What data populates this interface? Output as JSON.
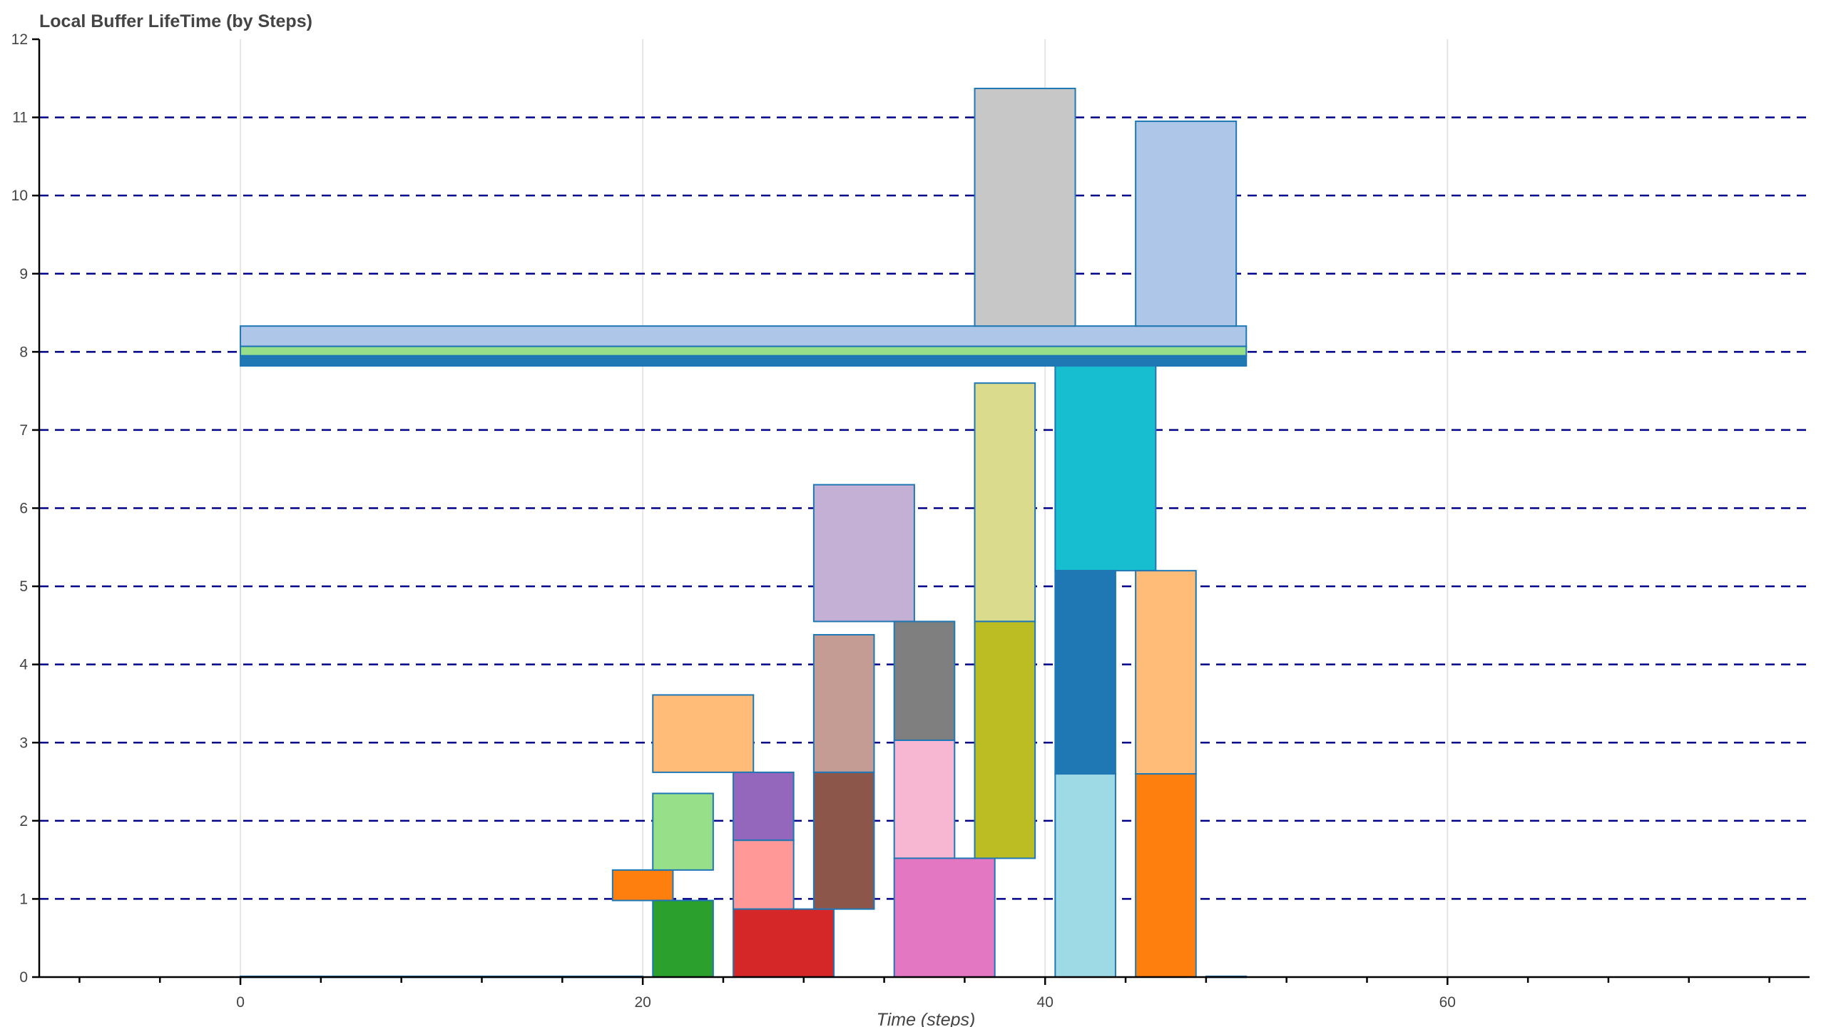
{
  "chart_data": {
    "type": "bar",
    "subtype": "rectangles",
    "title": "Local Buffer LifeTime (by Steps)",
    "xlabel": "Time (steps)",
    "ylabel": "",
    "xlim": [
      -10,
      78
    ],
    "ylim": [
      0,
      12
    ],
    "xticks": [
      0,
      20,
      40,
      60
    ],
    "xtick_labels": [
      "0",
      "20",
      "40",
      "60"
    ],
    "yticks": [
      0,
      1,
      2,
      3,
      4,
      5,
      6,
      7,
      8,
      9,
      10,
      11,
      12
    ],
    "ytick_labels": [
      "0",
      "1",
      "2",
      "3",
      "4",
      "5",
      "6",
      "7",
      "8",
      "9",
      "10",
      "11",
      "12"
    ],
    "grid": "horizontal dashed lines; light vertical lines at major x ticks",
    "grid_color": "#00008b",
    "edge_color": "#1f77b4",
    "rects": [
      {
        "x0": 0,
        "x1": 20,
        "y0": 0,
        "y1": 0.01,
        "color": "#1f77b4"
      },
      {
        "x0": 48,
        "x1": 50,
        "y0": 0,
        "y1": 0.01,
        "color": "#1f77b4"
      },
      {
        "x0": 0,
        "x1": 50,
        "y0": 8.07,
        "y1": 8.33,
        "color": "#aec7e8"
      },
      {
        "x0": 0,
        "x1": 50,
        "y0": 7.95,
        "y1": 8.07,
        "color": "#98df8a"
      },
      {
        "x0": 0,
        "x1": 50,
        "y0": 7.82,
        "y1": 7.95,
        "color": "#1f77b4"
      },
      {
        "x0": 36.5,
        "x1": 41.5,
        "y0": 8.33,
        "y1": 11.37,
        "color": "#c7c7c7"
      },
      {
        "x0": 44.5,
        "x1": 49.5,
        "y0": 8.33,
        "y1": 10.95,
        "color": "#aec7e8"
      },
      {
        "x0": 18.5,
        "x1": 21.5,
        "y0": 0.98,
        "y1": 1.37,
        "color": "#ff7f0e"
      },
      {
        "x0": 20.5,
        "x1": 23.5,
        "y0": 0,
        "y1": 0.98,
        "color": "#2ca02c"
      },
      {
        "x0": 20.5,
        "x1": 23.5,
        "y0": 1.37,
        "y1": 2.35,
        "color": "#98df8a"
      },
      {
        "x0": 20.5,
        "x1": 25.5,
        "y0": 2.62,
        "y1": 3.61,
        "color": "#ffbb78"
      },
      {
        "x0": 24.5,
        "x1": 27.5,
        "y0": 1.75,
        "y1": 2.62,
        "color": "#9467bd"
      },
      {
        "x0": 24.5,
        "x1": 27.5,
        "y0": 0.87,
        "y1": 1.75,
        "color": "#ff9896"
      },
      {
        "x0": 24.5,
        "x1": 29.5,
        "y0": 0,
        "y1": 0.87,
        "color": "#d62728"
      },
      {
        "x0": 28.5,
        "x1": 33.5,
        "y0": 4.55,
        "y1": 6.3,
        "color": "#c5b0d5"
      },
      {
        "x0": 28.5,
        "x1": 31.5,
        "y0": 2.62,
        "y1": 4.38,
        "color": "#c49c94"
      },
      {
        "x0": 28.5,
        "x1": 31.5,
        "y0": 0.87,
        "y1": 2.62,
        "color": "#8c564b"
      },
      {
        "x0": 32.5,
        "x1": 35.5,
        "y0": 3.03,
        "y1": 4.55,
        "color": "#7f7f7f"
      },
      {
        "x0": 32.5,
        "x1": 35.5,
        "y0": 1.52,
        "y1": 3.03,
        "color": "#f7b6d2"
      },
      {
        "x0": 32.5,
        "x1": 37.5,
        "y0": 0,
        "y1": 1.52,
        "color": "#e377c2"
      },
      {
        "x0": 36.5,
        "x1": 39.5,
        "y0": 4.55,
        "y1": 7.6,
        "color": "#dbdb8d"
      },
      {
        "x0": 36.5,
        "x1": 39.5,
        "y0": 1.52,
        "y1": 4.55,
        "color": "#bcbd22"
      },
      {
        "x0": 40.5,
        "x1": 45.5,
        "y0": 5.2,
        "y1": 7.82,
        "color": "#17becf"
      },
      {
        "x0": 40.5,
        "x1": 43.5,
        "y0": 2.6,
        "y1": 5.2,
        "color": "#1f77b4"
      },
      {
        "x0": 40.5,
        "x1": 43.5,
        "y0": 0,
        "y1": 2.6,
        "color": "#9edae5"
      },
      {
        "x0": 44.5,
        "x1": 47.5,
        "y0": 2.6,
        "y1": 5.2,
        "color": "#ffbb78"
      },
      {
        "x0": 44.5,
        "x1": 47.5,
        "y0": 0,
        "y1": 2.6,
        "color": "#ff7f0e"
      }
    ]
  }
}
